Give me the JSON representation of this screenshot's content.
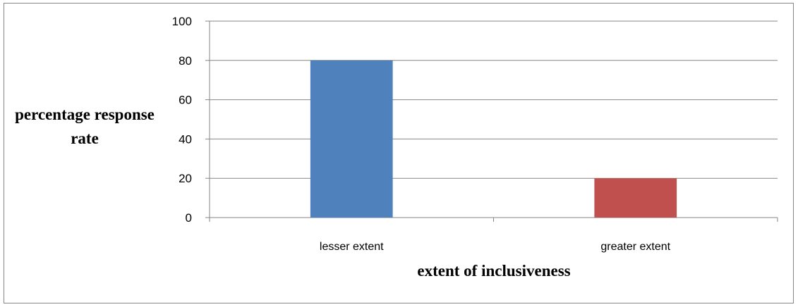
{
  "chart_data": {
    "type": "bar",
    "title": "",
    "xlabel": "extent of inclusiveness",
    "ylabel": "percentage response rate",
    "ylim": [
      0,
      100
    ],
    "yticks": [
      0,
      20,
      40,
      60,
      80,
      100
    ],
    "grid": true,
    "legend": "none",
    "categories": [
      "lesser extent",
      "greater extent"
    ],
    "values": [
      80,
      20
    ],
    "colors": [
      "#4F81BD",
      "#C0504D"
    ]
  }
}
